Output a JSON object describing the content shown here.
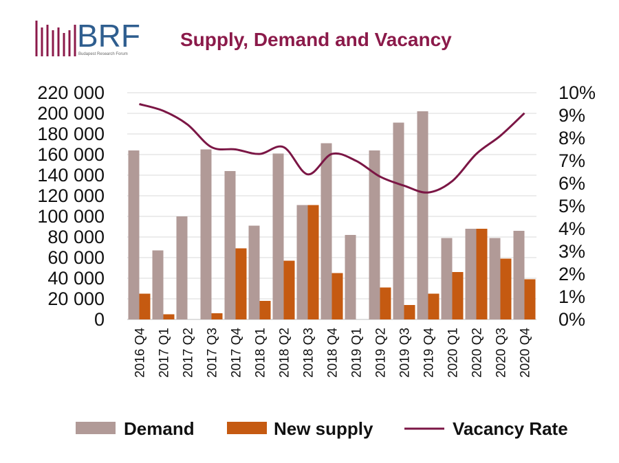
{
  "header": {
    "brand": "BRF",
    "brand_sub": "Budapest Research Forum",
    "title": "Supply, Demand and Vacancy"
  },
  "colors": {
    "demand": "#b19a97",
    "new_supply": "#c55a11",
    "vacancy": "#7b1645",
    "title": "#8b1a4a",
    "brand": "#2f5e8f",
    "grid": "#d9d9d9"
  },
  "chart_data": {
    "type": "bar",
    "categories": [
      "2016 Q4",
      "2017 Q1",
      "2017 Q2",
      "2017 Q3",
      "2017 Q4",
      "2018 Q1",
      "2018 Q2",
      "2018 Q3",
      "2018 Q4",
      "2019 Q1",
      "2019 Q2",
      "2019 Q3",
      "2019 Q4",
      "2020 Q1",
      "2020 Q2",
      "2020 Q3",
      "2020 Q4"
    ],
    "series": [
      {
        "name": "Demand",
        "type": "bar",
        "axis": "left",
        "values": [
          164000,
          67000,
          100000,
          165000,
          144000,
          91000,
          161000,
          111000,
          171000,
          82000,
          164000,
          191000,
          202000,
          79000,
          88000,
          79000,
          86000
        ]
      },
      {
        "name": "New supply",
        "type": "bar",
        "axis": "left",
        "values": [
          25000,
          5000,
          0,
          6000,
          69000,
          18000,
          57000,
          111000,
          45000,
          0,
          31000,
          14000,
          25000,
          46000,
          88000,
          59000,
          39000
        ]
      },
      {
        "name": "Vacancy Rate",
        "type": "line",
        "axis": "right",
        "values": [
          9.5,
          9.2,
          8.6,
          7.6,
          7.5,
          7.3,
          7.6,
          6.4,
          7.3,
          7.0,
          6.3,
          5.9,
          5.6,
          6.1,
          7.3,
          8.1,
          9.1
        ]
      }
    ],
    "y_left": {
      "min": 0,
      "max": 220000,
      "step": 20000,
      "ticks": [
        "0",
        "20 000",
        "40 000",
        "60 000",
        "80 000",
        "100 000",
        "120 000",
        "140 000",
        "160 000",
        "180 000",
        "200 000",
        "220 000"
      ]
    },
    "y_right": {
      "min": 0,
      "max": 10,
      "step": 1,
      "ticks": [
        "0%",
        "1%",
        "2%",
        "3%",
        "4%",
        "5%",
        "6%",
        "7%",
        "8%",
        "9%",
        "10%"
      ]
    },
    "grid": true,
    "legend": {
      "position": "bottom",
      "items": [
        "Demand",
        "New supply",
        "Vacancy Rate"
      ]
    }
  }
}
